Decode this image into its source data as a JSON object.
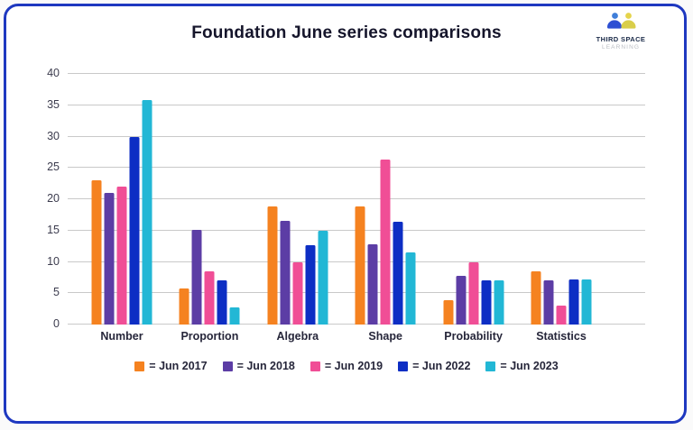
{
  "page": {
    "background": "#FAFAFA",
    "card_border_color": "#1E38C0"
  },
  "header": {
    "title": "Foundation June series comparisons",
    "logo": {
      "icon": "two-people-icon",
      "line1": "THIRD SPACE",
      "line2": "LEARNING",
      "colors": {
        "left_head": "#3F7ED9",
        "left_body": "#2D4FD3",
        "right_head": "#E5D44B",
        "right_body": "#D9CE4A"
      }
    }
  },
  "chart_data": {
    "type": "bar",
    "title": "Foundation June series comparisons",
    "categories": [
      "Number",
      "Proportion",
      "Algebra",
      "Shape",
      "Probability",
      "Statistics"
    ],
    "series": [
      {
        "name": "Jun 2017",
        "legend_label": "= Jun 2017",
        "color": "#F58220",
        "values": [
          23,
          5.8,
          18.8,
          18.8,
          3.9,
          8.5
        ]
      },
      {
        "name": "Jun 2018",
        "legend_label": "= Jun 2018",
        "color": "#5C3DA5",
        "values": [
          21,
          15.1,
          16.5,
          12.8,
          7.8,
          7.1
        ]
      },
      {
        "name": "Jun 2019",
        "legend_label": "= Jun 2019",
        "color": "#F04E96",
        "values": [
          22,
          8.5,
          10,
          26.4,
          10,
          3
        ]
      },
      {
        "name": "Jun 2022",
        "legend_label": "= Jun 2022",
        "color": "#0D2EC4",
        "values": [
          30,
          7,
          12.7,
          16.4,
          7,
          7.2
        ]
      },
      {
        "name": "Jun 2023",
        "legend_label": "= Jun 2023",
        "color": "#22B7D5",
        "values": [
          35.8,
          2.8,
          15,
          11.5,
          7,
          7.2
        ]
      }
    ],
    "xlabel": "",
    "ylabel": "",
    "ylim": [
      0,
      40
    ],
    "ytick_step": 5,
    "grid": true,
    "legend_position": "bottom",
    "gridline_color": "#C9C9C9",
    "axis_text_color": "#3C3C4E"
  }
}
